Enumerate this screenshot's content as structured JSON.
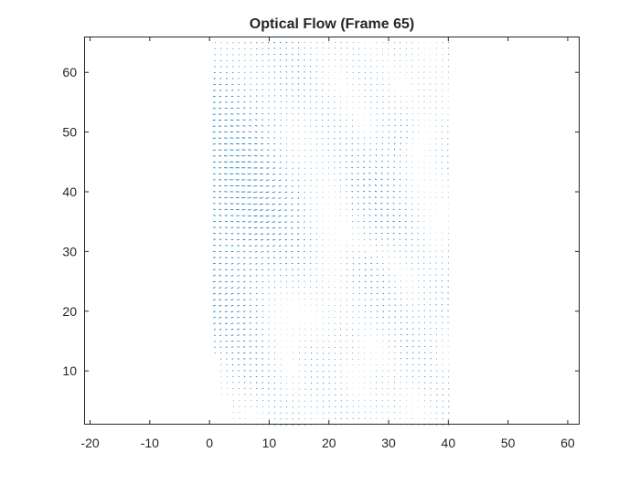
{
  "chart_data": {
    "type": "quiver",
    "title": "Optical Flow (Frame 65)",
    "xlabel": "",
    "ylabel": "",
    "xlim": [
      -21,
      62
    ],
    "ylim": [
      1,
      66
    ],
    "xticks": [
      -20,
      -10,
      0,
      10,
      20,
      30,
      40,
      50,
      60
    ],
    "yticks": [
      10,
      20,
      30,
      40,
      50,
      60
    ],
    "grid": false,
    "box": true,
    "arrow_color": "#0072BD",
    "field": {
      "x_range": [
        1,
        40
      ],
      "y_range": [
        1,
        65
      ],
      "grid_step": 1,
      "arrow_length_scale": 0.5
    }
  }
}
